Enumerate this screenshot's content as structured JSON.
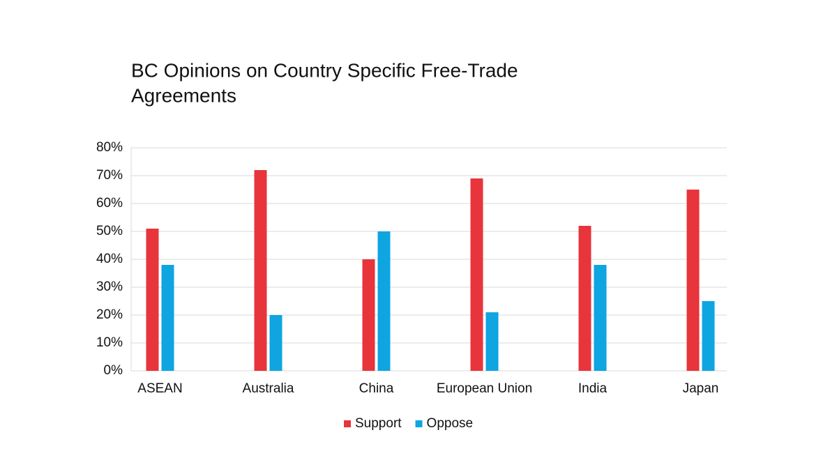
{
  "chart_data": {
    "type": "bar",
    "title": [
      "BC Opinions on Country Specific Free-Trade",
      "Agreements"
    ],
    "categories": [
      "ASEAN",
      "Australia",
      "China",
      "European Union",
      "India",
      "Japan"
    ],
    "series": [
      {
        "name": "Support",
        "color": "#e8343b",
        "values": [
          51,
          72,
          40,
          69,
          52,
          65
        ]
      },
      {
        "name": "Oppose",
        "color": "#0ea5e1",
        "values": [
          38,
          20,
          50,
          21,
          38,
          25
        ]
      }
    ],
    "ylim": [
      0,
      80
    ],
    "yticks": [
      {
        "value": 0,
        "label": "0%"
      },
      {
        "value": 10,
        "label": "10%"
      },
      {
        "value": 20,
        "label": "20%"
      },
      {
        "value": 30,
        "label": "30%"
      },
      {
        "value": 40,
        "label": "40%"
      },
      {
        "value": 50,
        "label": "50%"
      },
      {
        "value": 60,
        "label": "60%"
      },
      {
        "value": 70,
        "label": "70%"
      },
      {
        "value": 80,
        "label": "80%"
      }
    ],
    "grid": true,
    "legend": "bottom"
  }
}
